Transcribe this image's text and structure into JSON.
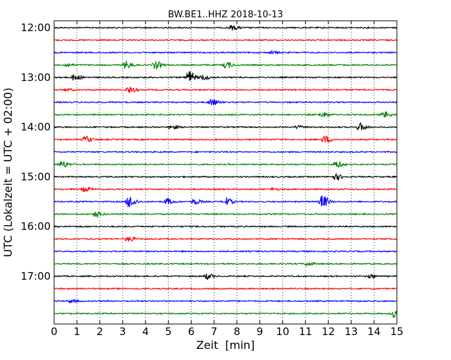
{
  "chart_data": {
    "type": "line",
    "title": "BW.BE1..HHZ 2018-10-13",
    "xlabel": "Zeit  [min]",
    "ylabel": "UTC (Lokalzeit = UTC + 02:00)",
    "xlim": [
      0,
      15
    ],
    "x_ticks": [
      0,
      1,
      2,
      3,
      4,
      5,
      6,
      7,
      8,
      9,
      10,
      11,
      12,
      13,
      14,
      15
    ],
    "y_tick_labels": [
      "12:00",
      "13:00",
      "14:00",
      "15:00",
      "16:00",
      "17:00"
    ],
    "grid": "vertical dotted",
    "trace_colors": [
      "#000000",
      "#ff0000",
      "#0000ff",
      "#008000"
    ],
    "traces": [
      {
        "start": "12:00",
        "events": [
          {
            "t": 7.75,
            "amp": 0.35
          }
        ]
      },
      {
        "start": "12:15",
        "events": []
      },
      {
        "start": "12:30",
        "events": [
          {
            "t": 9.5,
            "amp": 0.2
          }
        ]
      },
      {
        "start": "12:45",
        "events": [
          {
            "t": 0.5,
            "amp": 0.25
          },
          {
            "t": 3.1,
            "amp": 0.6
          },
          {
            "t": 4.4,
            "amp": 0.6
          },
          {
            "t": 7.5,
            "amp": 0.5
          }
        ]
      },
      {
        "start": "13:00",
        "events": [
          {
            "t": 0.85,
            "amp": 0.5
          },
          {
            "t": 5.85,
            "amp": 1.1
          },
          {
            "t": 6.5,
            "amp": 0.4
          }
        ]
      },
      {
        "start": "13:15",
        "events": [
          {
            "t": 0.5,
            "amp": 0.2
          },
          {
            "t": 3.25,
            "amp": 0.55
          }
        ]
      },
      {
        "start": "13:30",
        "events": [
          {
            "t": 6.85,
            "amp": 0.5
          }
        ]
      },
      {
        "start": "13:45",
        "events": [
          {
            "t": 11.7,
            "amp": 0.4
          },
          {
            "t": 14.4,
            "amp": 0.45
          }
        ]
      },
      {
        "start": "14:00",
        "events": [
          {
            "t": 5.1,
            "amp": 0.35
          },
          {
            "t": 10.6,
            "amp": 0.2
          },
          {
            "t": 13.35,
            "amp": 0.6
          }
        ]
      },
      {
        "start": "14:15",
        "events": [
          {
            "t": 1.35,
            "amp": 0.5
          },
          {
            "t": 11.8,
            "amp": 0.6
          }
        ]
      },
      {
        "start": "14:30",
        "events": []
      },
      {
        "start": "14:45",
        "events": [
          {
            "t": 0.3,
            "amp": 0.5
          },
          {
            "t": 12.3,
            "amp": 0.5
          }
        ]
      },
      {
        "start": "15:00",
        "events": [
          {
            "t": 12.3,
            "amp": 0.45
          }
        ]
      },
      {
        "start": "15:15",
        "events": [
          {
            "t": 1.3,
            "amp": 0.35
          },
          {
            "t": 9.5,
            "amp": 0.2
          }
        ]
      },
      {
        "start": "15:30",
        "events": [
          {
            "t": 3.25,
            "amp": 1.0
          },
          {
            "t": 4.9,
            "amp": 0.5
          },
          {
            "t": 6.1,
            "amp": 0.45
          },
          {
            "t": 7.5,
            "amp": 0.6
          },
          {
            "t": 11.7,
            "amp": 1.0
          }
        ]
      },
      {
        "start": "15:45",
        "events": [
          {
            "t": 1.8,
            "amp": 0.45
          }
        ]
      },
      {
        "start": "16:00",
        "events": []
      },
      {
        "start": "16:15",
        "events": [
          {
            "t": 3.2,
            "amp": 0.4
          }
        ]
      },
      {
        "start": "16:30",
        "events": []
      },
      {
        "start": "16:45",
        "events": [
          {
            "t": 11.05,
            "amp": 0.3
          }
        ]
      },
      {
        "start": "17:00",
        "events": [
          {
            "t": 6.65,
            "amp": 0.45
          },
          {
            "t": 13.8,
            "amp": 0.3
          }
        ]
      },
      {
        "start": "17:15",
        "events": []
      },
      {
        "start": "17:30",
        "events": [
          {
            "t": 0.7,
            "amp": 0.2
          }
        ]
      },
      {
        "start": "17:45",
        "events": [
          {
            "t": 14.85,
            "amp": 0.65
          }
        ]
      }
    ]
  }
}
